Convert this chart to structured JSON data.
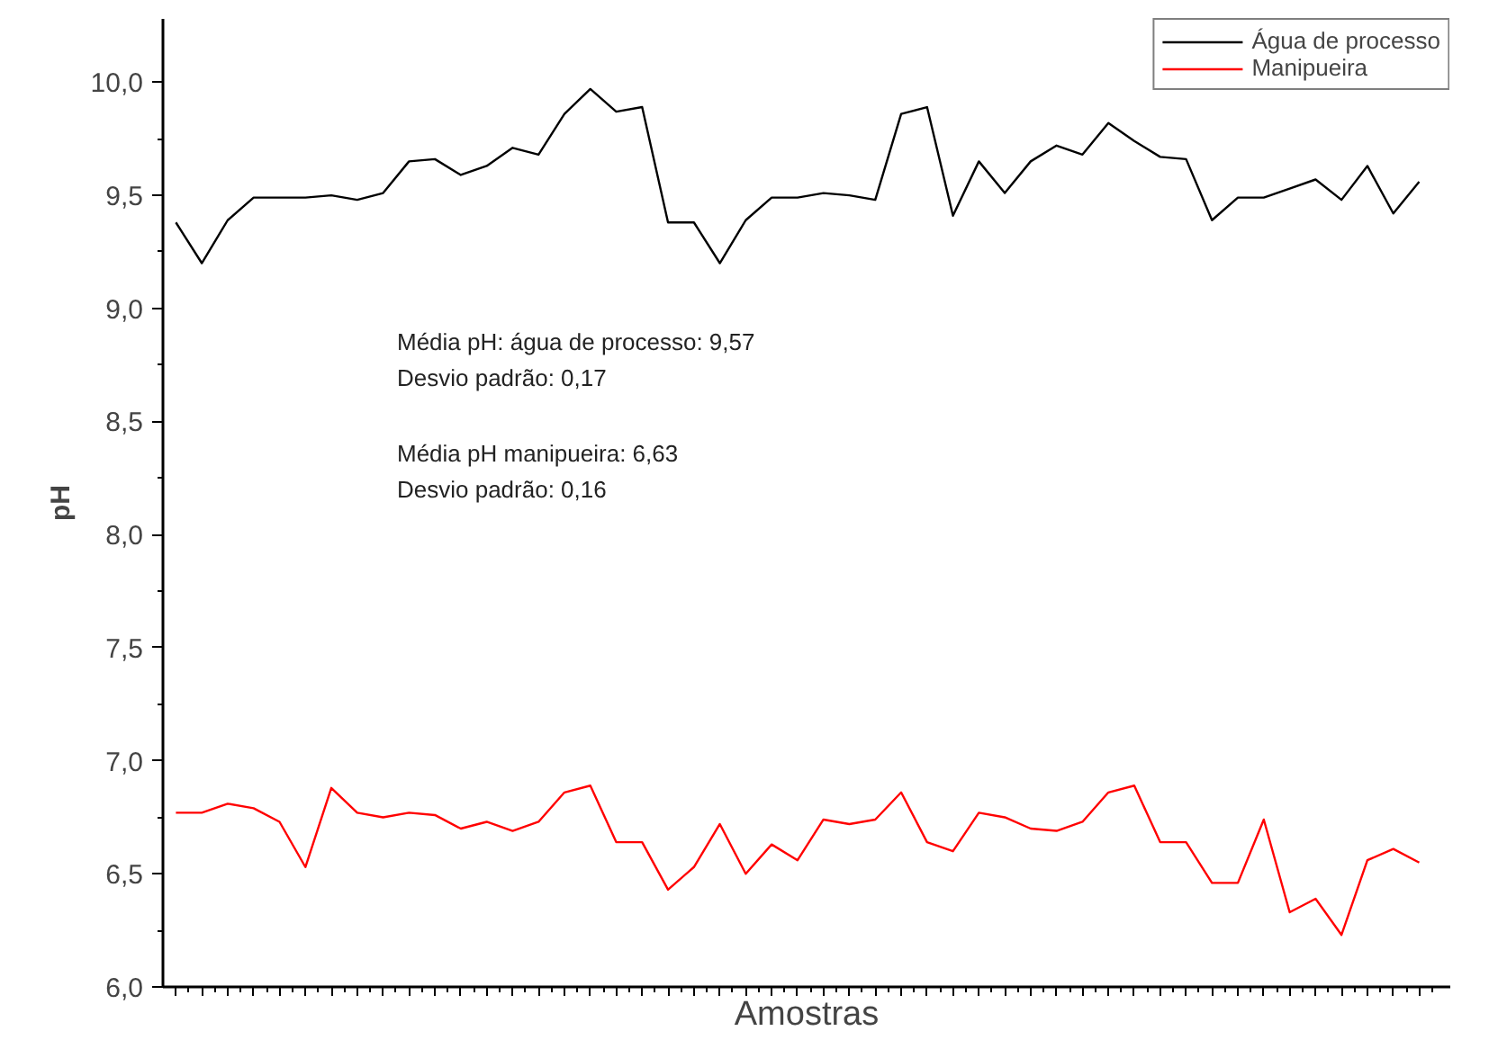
{
  "chart_data": {
    "type": "line",
    "xlabel": "Amostras",
    "ylabel": "pH",
    "categories": [
      null,
      null,
      null,
      null,
      null,
      null,
      null,
      null,
      null,
      null,
      null,
      null,
      null,
      null,
      null,
      null,
      null,
      null,
      null,
      null,
      null,
      null,
      null,
      null,
      null,
      null,
      null,
      null,
      null,
      null,
      null,
      null,
      null,
      null,
      null,
      null,
      null,
      null,
      null,
      null,
      null,
      null,
      null,
      null,
      null,
      null,
      null,
      null,
      null
    ],
    "series": [
      {
        "name": "Água de processo",
        "color": "#000000",
        "values": [
          9.38,
          9.2,
          9.39,
          9.49,
          9.49,
          9.49,
          9.5,
          9.48,
          9.51,
          9.65,
          9.66,
          9.59,
          9.63,
          9.71,
          9.68,
          9.86,
          9.97,
          9.87,
          9.89,
          9.38,
          9.38,
          9.2,
          9.39,
          9.49,
          9.49,
          9.51,
          9.5,
          9.48,
          9.86,
          9.89,
          9.41,
          9.65,
          9.51,
          9.65,
          9.72,
          9.68,
          9.82,
          9.74,
          9.67,
          9.66,
          9.39,
          9.49,
          9.49,
          9.53,
          9.57,
          9.48,
          9.63,
          9.42,
          9.56
        ]
      },
      {
        "name": "Manipueira",
        "color": "#ff0000",
        "values": [
          6.77,
          6.77,
          6.81,
          6.79,
          6.73,
          6.53,
          6.88,
          6.77,
          6.75,
          6.77,
          6.76,
          6.7,
          6.73,
          6.69,
          6.73,
          6.86,
          6.89,
          6.64,
          6.64,
          6.43,
          6.53,
          6.72,
          6.5,
          6.63,
          6.56,
          6.74,
          6.72,
          6.74,
          6.86,
          6.64,
          6.6,
          6.77,
          6.75,
          6.7,
          6.69,
          6.73,
          6.86,
          6.89,
          6.64,
          6.64,
          6.46,
          6.46,
          6.74,
          6.33,
          6.39,
          6.23,
          6.56,
          6.61,
          6.55
        ]
      }
    ],
    "ylim": [
      6.0,
      10.28
    ],
    "yticks": [
      {
        "value": 6.0,
        "label": "6,0"
      },
      {
        "value": 6.5,
        "label": "6,5"
      },
      {
        "value": 7.0,
        "label": "7,0"
      },
      {
        "value": 7.5,
        "label": "7,5"
      },
      {
        "value": 8.0,
        "label": "8,0"
      },
      {
        "value": 8.5,
        "label": "8,5"
      },
      {
        "value": 9.0,
        "label": "9,0"
      },
      {
        "value": 9.5,
        "label": "9,5"
      },
      {
        "value": 10.0,
        "label": "10,0"
      }
    ],
    "tick_labels": "y",
    "grid": false,
    "legend": "top right",
    "marker": "none",
    "line_style": "solid",
    "annotations": [
      "Média pH: água de processo: 9,57",
      "Desvio padrão: 0,17",
      "Média pH manipueira: 6,63",
      "Desvio padrão: 0,16"
    ]
  }
}
